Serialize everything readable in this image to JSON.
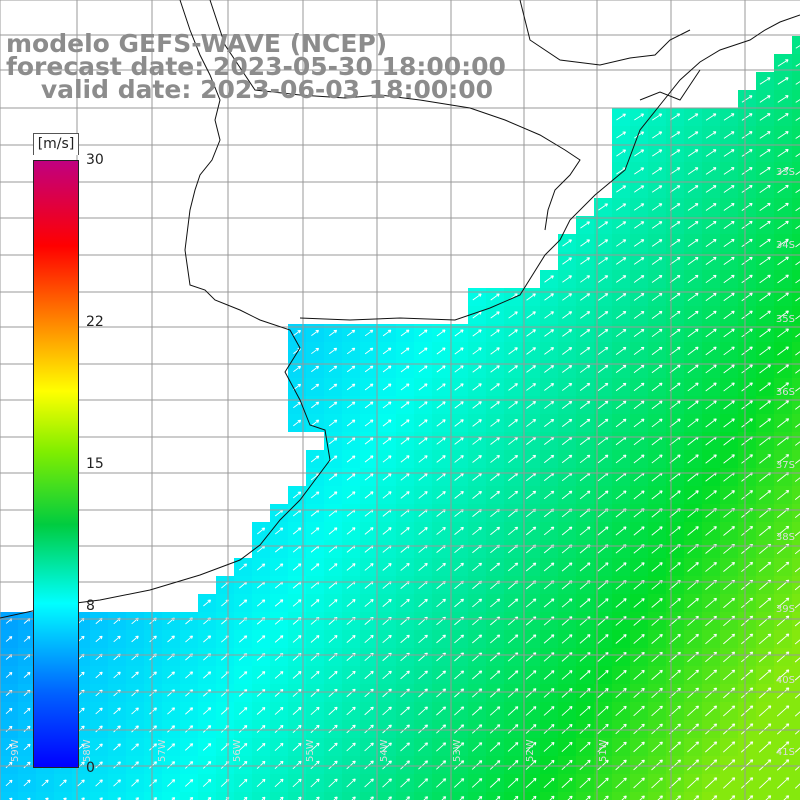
{
  "header": {
    "line1": "modelo GEFS-WAVE (NCEP)",
    "line2": "forecast date: 2023-05-30 18:00:00",
    "line3": "    valid date: 2023-06-03 18:00:00"
  },
  "colorbar": {
    "unit": "[m/s]",
    "ticks": [
      {
        "label": "30",
        "value": 30
      },
      {
        "label": "22",
        "value": 22
      },
      {
        "label": "15",
        "value": 15
      },
      {
        "label": "8",
        "value": 8
      },
      {
        "label": "0",
        "value": 0
      }
    ],
    "colors": [
      "#0000ff",
      "#00a0ff",
      "#00ffff",
      "#00dd00",
      "#ffff00",
      "#ff8000",
      "#ff0000",
      "#c00080"
    ]
  },
  "map": {
    "lat_labels": [
      "33S",
      "34S",
      "35S",
      "36S",
      "37S",
      "38S",
      "39S",
      "40S",
      "41S"
    ],
    "lon_labels": [
      "59W",
      "58W",
      "57W",
      "56W",
      "55W",
      "54W",
      "53W",
      "52W",
      "51W"
    ],
    "field": "wind speed",
    "land_color": "#ffffff",
    "grid_color": "#999999",
    "arrow_color": "#ffffff"
  }
}
